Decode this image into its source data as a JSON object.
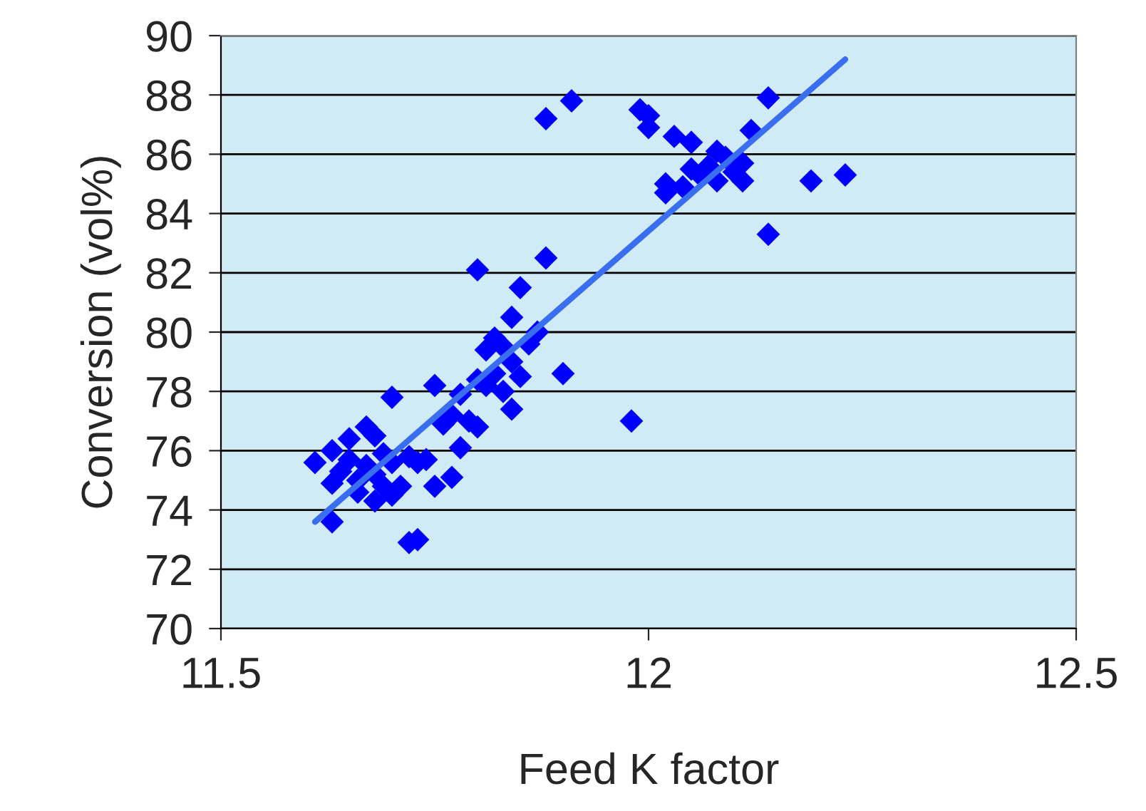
{
  "chart_data": {
    "type": "scatter",
    "xlabel": "Feed K factor",
    "ylabel": "Conversion (vol%)",
    "xlim": [
      11.5,
      12.5
    ],
    "xticks": [
      11.5,
      12,
      12.5
    ],
    "ylim": [
      70,
      90
    ],
    "yticks": [
      70,
      72,
      74,
      76,
      78,
      80,
      82,
      84,
      86,
      88,
      90
    ],
    "grid": "y",
    "legend": false,
    "marker": "diamond",
    "series": [
      {
        "color": "#0000ff",
        "x": [
          11.61,
          11.63,
          11.63,
          11.63,
          11.64,
          11.65,
          11.65,
          11.66,
          11.66,
          11.67,
          11.67,
          11.68,
          11.68,
          11.68,
          11.69,
          11.69,
          11.7,
          11.7,
          11.7,
          11.71,
          11.72,
          11.73,
          11.72,
          11.73,
          11.74,
          11.75,
          11.75,
          11.76,
          11.77,
          11.77,
          11.78,
          11.78,
          11.79,
          11.8,
          11.8,
          11.8,
          11.81,
          11.81,
          11.82,
          11.82,
          11.83,
          11.83,
          11.84,
          11.84,
          11.84,
          11.85,
          11.85,
          11.86,
          11.87,
          11.88,
          11.88,
          11.9,
          11.91,
          11.98,
          11.99,
          12.0,
          12.0,
          12.02,
          12.02,
          12.03,
          12.04,
          12.05,
          12.05,
          12.06,
          12.07,
          12.08,
          12.08,
          12.09,
          12.1,
          12.11,
          12.11,
          12.12,
          12.14,
          12.14,
          12.19,
          12.23
        ],
        "values": [
          75.6,
          73.6,
          74.9,
          76.0,
          75.3,
          75.7,
          76.4,
          75.0,
          74.6,
          76.8,
          75.5,
          76.5,
          74.3,
          75.2,
          74.8,
          75.9,
          77.8,
          74.5,
          75.6,
          74.8,
          72.9,
          73.0,
          75.8,
          75.6,
          75.7,
          74.8,
          78.2,
          76.9,
          77.2,
          75.1,
          76.1,
          77.9,
          77.0,
          82.1,
          76.8,
          78.4,
          79.4,
          78.2,
          79.8,
          78.6,
          79.5,
          78.0,
          80.5,
          77.4,
          79.0,
          81.5,
          78.5,
          79.6,
          80.0,
          82.5,
          87.2,
          78.6,
          87.8,
          77.0,
          87.5,
          87.3,
          86.9,
          85.0,
          84.7,
          86.6,
          84.9,
          85.5,
          86.4,
          85.3,
          85.6,
          86.1,
          85.1,
          85.9,
          85.4,
          85.1,
          85.7,
          86.8,
          87.9,
          83.3,
          85.1,
          85.3
        ]
      },
      {
        "type": "line",
        "color": "#3a6ef0",
        "marker": "none",
        "x": [
          11.61,
          12.23
        ],
        "values": [
          73.6,
          89.2
        ]
      }
    ]
  }
}
